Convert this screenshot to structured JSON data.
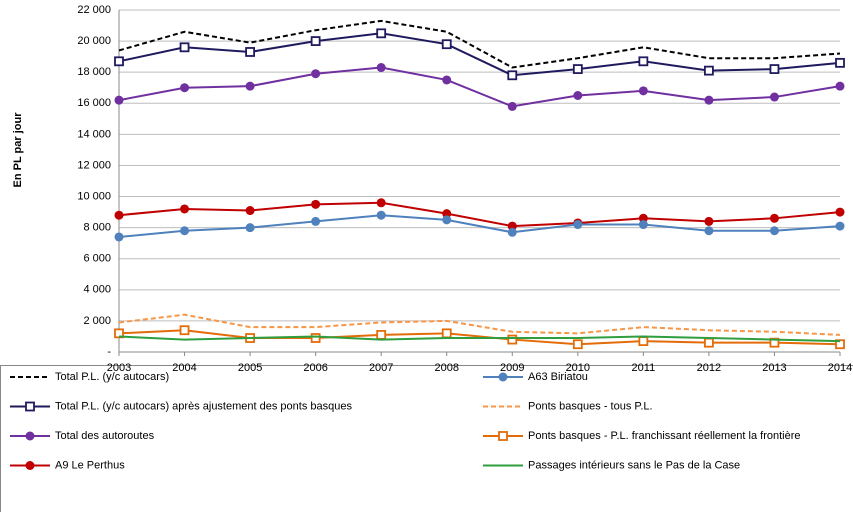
{
  "chart_data": {
    "type": "line",
    "y_label": "En PL par jour",
    "categories": [
      "2003",
      "2004",
      "2005",
      "2006",
      "2007",
      "2008",
      "2009",
      "2010",
      "2011",
      "2012",
      "2013",
      "2014"
    ],
    "ylim": [
      0,
      22000
    ],
    "yticks": [
      {
        "value": 0,
        "label": "-"
      },
      {
        "value": 2000,
        "label": "2 000"
      },
      {
        "value": 4000,
        "label": "4 000"
      },
      {
        "value": 6000,
        "label": "6 000"
      },
      {
        "value": 8000,
        "label": "8 000"
      },
      {
        "value": 10000,
        "label": "10 000"
      },
      {
        "value": 12000,
        "label": "12 000"
      },
      {
        "value": 14000,
        "label": "14 000"
      },
      {
        "value": 16000,
        "label": "16 000"
      },
      {
        "value": 18000,
        "label": "18 000"
      },
      {
        "value": 20000,
        "label": "20 000"
      },
      {
        "value": 22000,
        "label": "22 000"
      }
    ],
    "grid": true,
    "legend": "bottom",
    "series": [
      {
        "name": "Total P.L. (y/c autocars)",
        "color": "#000000",
        "dash": true,
        "marker": "none",
        "values": [
          19400,
          20600,
          19900,
          20700,
          21300,
          20600,
          18300,
          18900,
          19600,
          18900,
          18900,
          19200
        ]
      },
      {
        "name": "Total P.L. (y/c autocars) après ajustement des ponts basques",
        "color": "#1f1a5e",
        "dash": false,
        "marker": "square",
        "values": [
          18700,
          19600,
          19300,
          20000,
          20500,
          19800,
          17800,
          18200,
          18700,
          18100,
          18200,
          18600
        ]
      },
      {
        "name": "Total des autoroutes",
        "color": "#7030a0",
        "dash": false,
        "marker": "circle",
        "values": [
          16200,
          17000,
          17100,
          17900,
          18300,
          17500,
          15800,
          16500,
          16800,
          16200,
          16400,
          17100
        ]
      },
      {
        "name": "A9 Le Perthus",
        "color": "#c00000",
        "dash": false,
        "marker": "circle",
        "values": [
          8800,
          9200,
          9100,
          9500,
          9600,
          8900,
          8100,
          8300,
          8600,
          8400,
          8600,
          9000
        ]
      },
      {
        "name": "A63 Biriatou",
        "color": "#4f81bd",
        "dash": false,
        "marker": "circle",
        "values": [
          7400,
          7800,
          8000,
          8400,
          8800,
          8500,
          7700,
          8200,
          8200,
          7800,
          7800,
          8100
        ]
      },
      {
        "name": "Ponts basques - tous P.L.",
        "color": "#f79646",
        "dash": true,
        "marker": "none",
        "values": [
          1900,
          2400,
          1600,
          1600,
          1900,
          2000,
          1300,
          1200,
          1600,
          1400,
          1300,
          1100
        ]
      },
      {
        "name": "Ponts basques - P.L. franchissant réellement la frontière",
        "color": "#e36c09",
        "dash": false,
        "marker": "square",
        "values": [
          1200,
          1400,
          900,
          900,
          1100,
          1200,
          800,
          500,
          700,
          600,
          600,
          500
        ]
      },
      {
        "name": "Passages intérieurs sans le Pas de la Case",
        "color": "#2e9e3e",
        "dash": false,
        "marker": "none",
        "values": [
          1000,
          800,
          900,
          1000,
          800,
          900,
          900,
          900,
          1000,
          900,
          800,
          700
        ]
      }
    ]
  }
}
